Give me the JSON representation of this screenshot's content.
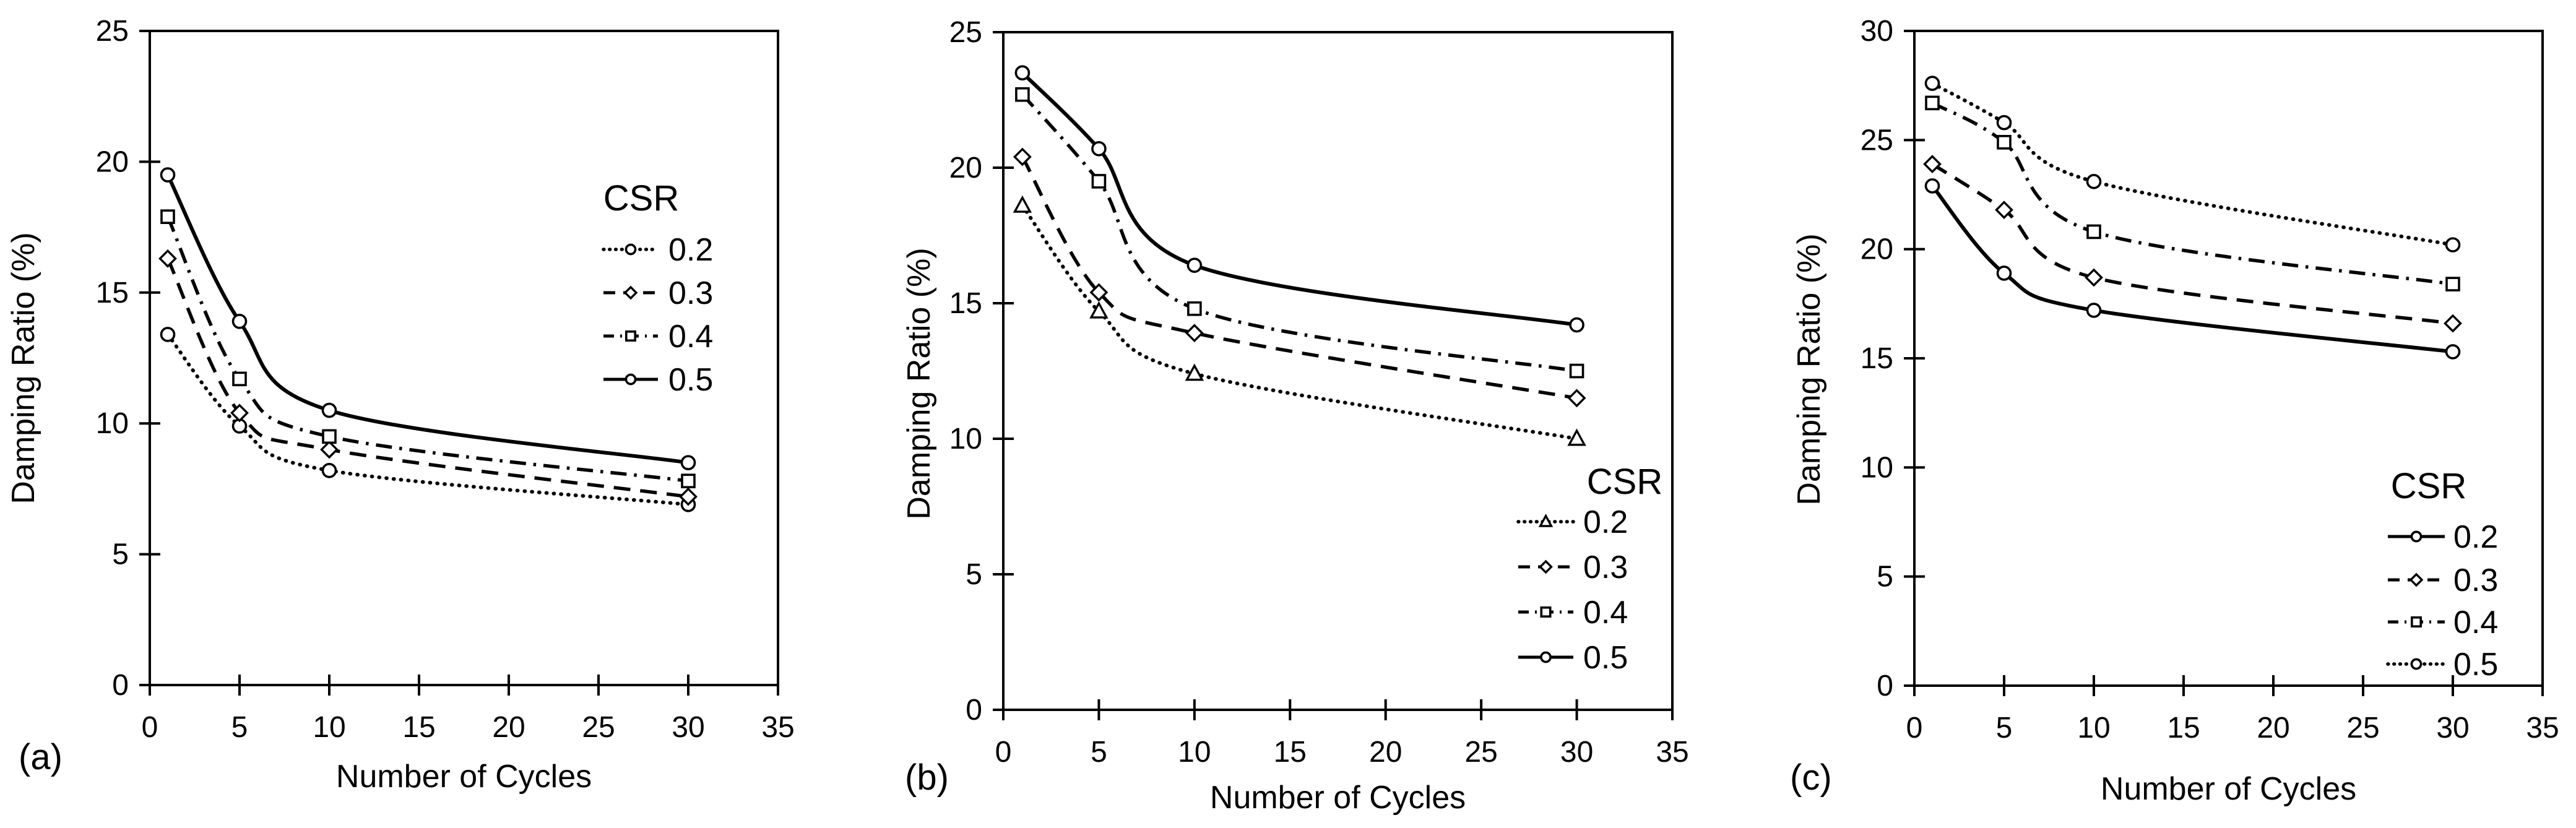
{
  "figure_title": "",
  "colors": {
    "line": "#000000",
    "background": "#ffffff",
    "marker_fill": "#ffffff"
  },
  "chart_data": [
    {
      "type": "line",
      "panel_label": "(a)",
      "title": "",
      "xlabel": "Number of Cycles",
      "ylabel": "Damping Ratio (%)",
      "legend_title": "CSR",
      "legend_position": "top-right",
      "grid": false,
      "xlim": [
        0,
        35
      ],
      "ylim": [
        0,
        25
      ],
      "xticks": [
        0,
        5,
        10,
        15,
        20,
        25,
        30,
        35
      ],
      "yticks": [
        0,
        5,
        10,
        15,
        20,
        25
      ],
      "x": [
        1,
        5,
        10,
        30
      ],
      "series": [
        {
          "name": "0.2",
          "line_style": "dotted",
          "marker": "circle",
          "values": [
            13.4,
            9.9,
            8.2,
            6.9
          ]
        },
        {
          "name": "0.3",
          "line_style": "dashed",
          "marker": "diamond",
          "values": [
            16.3,
            10.4,
            9.0,
            7.2
          ]
        },
        {
          "name": "0.4",
          "line_style": "dashdot",
          "marker": "square",
          "values": [
            17.9,
            11.7,
            9.5,
            7.8
          ]
        },
        {
          "name": "0.5",
          "line_style": "solid",
          "marker": "circle",
          "values": [
            19.5,
            13.9,
            10.5,
            8.5
          ]
        }
      ]
    },
    {
      "type": "line",
      "panel_label": "(b)",
      "title": "",
      "xlabel": "Number of Cycles",
      "ylabel": "Damping Ratio (%)",
      "legend_title": "CSR",
      "legend_position": "bottom-right",
      "grid": false,
      "xlim": [
        0,
        35
      ],
      "ylim": [
        0,
        25
      ],
      "xticks": [
        0,
        5,
        10,
        15,
        20,
        25,
        30,
        35
      ],
      "yticks": [
        0,
        5,
        10,
        15,
        20,
        25
      ],
      "x": [
        1,
        5,
        10,
        30
      ],
      "series": [
        {
          "name": "0.2",
          "line_style": "dotted",
          "marker": "triangle",
          "values": [
            18.6,
            14.7,
            12.4,
            10.0
          ]
        },
        {
          "name": "0.3",
          "line_style": "dashed",
          "marker": "diamond",
          "values": [
            20.4,
            15.4,
            13.9,
            11.5
          ]
        },
        {
          "name": "0.4",
          "line_style": "dashdot",
          "marker": "square",
          "values": [
            22.7,
            19.5,
            14.8,
            12.5
          ]
        },
        {
          "name": "0.5",
          "line_style": "solid",
          "marker": "circle",
          "values": [
            23.5,
            20.7,
            16.4,
            14.2
          ]
        }
      ]
    },
    {
      "type": "line",
      "panel_label": "(c)",
      "title": "",
      "xlabel": "Number of Cycles",
      "ylabel": "Damping Ratio (%)",
      "legend_title": "CSR",
      "legend_position": "bottom-right",
      "grid": false,
      "xlim": [
        0,
        35
      ],
      "ylim": [
        0,
        30
      ],
      "xticks": [
        0,
        5,
        10,
        15,
        20,
        25,
        30,
        35
      ],
      "yticks": [
        0,
        5,
        10,
        15,
        20,
        25,
        30
      ],
      "x": [
        1,
        5,
        10,
        30
      ],
      "series": [
        {
          "name": "0.2",
          "line_style": "solid",
          "marker": "circle",
          "values": [
            22.9,
            18.9,
            17.2,
            15.3
          ]
        },
        {
          "name": "0.3",
          "line_style": "dashed",
          "marker": "diamond",
          "values": [
            23.9,
            21.8,
            18.7,
            16.6
          ]
        },
        {
          "name": "0.4",
          "line_style": "dashdot",
          "marker": "square",
          "values": [
            26.7,
            24.9,
            20.8,
            18.4
          ]
        },
        {
          "name": "0.5",
          "line_style": "dotted",
          "marker": "circle",
          "values": [
            27.6,
            25.8,
            23.1,
            20.2
          ]
        }
      ]
    }
  ]
}
